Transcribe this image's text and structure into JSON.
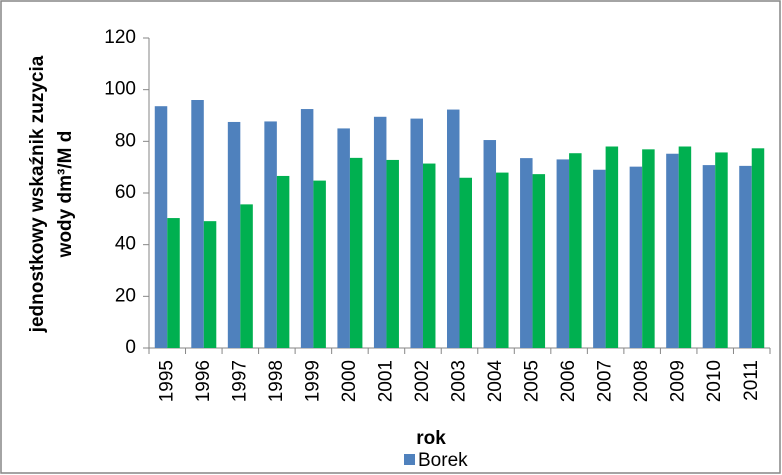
{
  "chart_data": {
    "type": "bar",
    "ylabel": [
      "jednostkowy wskaźnik zuzycia",
      "wody dm³/M d"
    ],
    "xlabel": "rok",
    "categories": [
      "1995",
      "1996",
      "1997",
      "1998",
      "1999",
      "2000",
      "2001",
      "2002",
      "2003",
      "2004",
      "2005",
      "2006",
      "2007",
      "2008",
      "2009",
      "2010",
      "2011"
    ],
    "series": [
      {
        "name": "Borek",
        "color": "#4f81bd",
        "values": [
          93.6,
          96,
          87.5,
          87.7,
          92.5,
          85,
          89.5,
          88.8,
          92.3,
          80.5,
          73.5,
          73,
          69,
          70.2,
          75.2,
          70.8,
          70.5
        ]
      },
      {
        "color": "#00b050",
        "values": [
          50.3,
          49.1,
          55.6,
          66.6,
          64.8,
          73.6,
          72.8,
          71.4,
          65.9,
          67.9,
          67.3,
          75.4,
          78,
          76.9,
          78,
          75.7,
          77.3
        ]
      }
    ],
    "ylim": [
      0,
      120
    ],
    "yticks": [
      0,
      20,
      40,
      60,
      80,
      100,
      120
    ],
    "grid": false
  }
}
